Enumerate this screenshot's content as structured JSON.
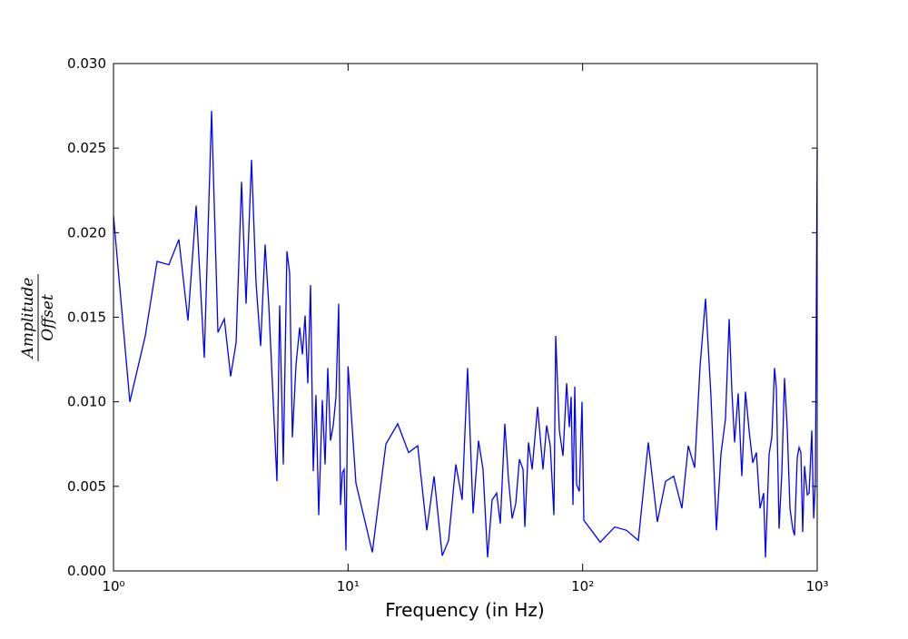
{
  "chart_data": {
    "type": "line",
    "xlabel": "Frequency (in Hz)",
    "ylabel_numerator": "Amplitude",
    "ylabel_denominator": "Offset",
    "xscale": "log",
    "xlim": [
      1,
      1000
    ],
    "xticks": [
      {
        "value": 1,
        "label": "10⁰"
      },
      {
        "value": 10,
        "label": "10¹"
      },
      {
        "value": 100,
        "label": "10²"
      },
      {
        "value": 1000,
        "label": "10³"
      }
    ],
    "ylim": [
      0,
      0.03
    ],
    "yticks": [
      {
        "value": 0,
        "label": "0.000"
      },
      0.005,
      {
        "value": 0.01,
        "label": "0.010"
      },
      0.015,
      {
        "value": 0.02,
        "label": "0.020"
      },
      0.025,
      {
        "value": 0.03,
        "label": "0.030"
      }
    ],
    "grid": false,
    "series": [
      {
        "color": "#0000ff",
        "x": [
          1,
          1.174,
          1.366,
          1.534,
          1.722,
          1.9,
          2.077,
          2.251,
          2.438,
          2.619,
          2.788,
          2.968,
          3.158,
          3.332,
          3.515,
          3.674,
          3.876,
          4.053,
          4.238,
          4.431,
          4.592,
          4.975,
          5.11,
          5.296,
          5.488,
          5.636,
          5.789,
          6.0,
          6.218,
          6.387,
          6.559,
          6.736,
          6.918,
          7.105,
          7.297,
          7.497,
          7.769,
          7.98,
          8.196,
          8.419,
          8.647,
          8.88,
          9.12,
          9.286,
          9.452,
          9.621,
          9.795,
          10.0,
          10.8,
          12.69,
          14.5,
          16.28,
          18.12,
          19.81,
          21.66,
          23.26,
          25.2,
          26.82,
          28.8,
          30.65,
          32.33,
          34.12,
          35.99,
          37.62,
          39.34,
          41.13,
          43.0,
          44.57,
          46.6,
          48.3,
          50.06,
          51.88,
          53.77,
          55.72,
          56.72,
          58.78,
          60.92,
          64.27,
          67.77,
          70.24,
          72.78,
          75.43,
          76.79,
          79.58,
          82.47,
          85.46,
          87.77,
          89.35,
          90.96,
          92.6,
          94.25,
          96.78,
          99.4,
          101.2,
          118.8,
          137.1,
          153.9,
          172.8,
          190.5,
          208.3,
          225.7,
          244.5,
          265.0,
          282.1,
          300.3,
          316.7,
          334.2,
          352.5,
          371.9,
          388.8,
          406.5,
          421.3,
          432.7,
          444.4,
          460.5,
          477.2,
          494.6,
          512.5,
          531.1,
          550.5,
          570.4,
          591.1,
          601.8,
          623.6,
          640.5,
          657.9,
          669.7,
          687.9,
          706.5,
          725.6,
          745.3,
          765.5,
          786.2,
          800.4,
          822.1,
          837.0,
          852.1,
          867.5,
          883.2,
          907.1,
          923.5,
          948.5,
          966.2,
          982.5,
          1000
        ],
        "values": [
          0.021,
          0.01,
          0.0139,
          0.0183,
          0.0181,
          0.0196,
          0.0148,
          0.0216,
          0.0126,
          0.0272,
          0.0141,
          0.0149,
          0.0115,
          0.0135,
          0.023,
          0.0158,
          0.0243,
          0.017,
          0.0133,
          0.0193,
          0.0157,
          0.0053,
          0.0157,
          0.0063,
          0.0189,
          0.0176,
          0.0079,
          0.0122,
          0.0144,
          0.0128,
          0.0151,
          0.0111,
          0.0169,
          0.0059,
          0.0104,
          0.0033,
          0.0101,
          0.0063,
          0.012,
          0.0077,
          0.0086,
          0.0103,
          0.0158,
          0.0039,
          0.0058,
          0.006,
          0.0012,
          0.0121,
          0.0052,
          0.0011,
          0.0075,
          0.0087,
          0.007,
          0.0074,
          0.0024,
          0.0056,
          0.0009,
          0.0018,
          0.0063,
          0.0042,
          0.012,
          0.0034,
          0.0077,
          0.006,
          0.0008,
          0.0042,
          0.0046,
          0.0028,
          0.0087,
          0.0054,
          0.0031,
          0.004,
          0.0066,
          0.006,
          0.0026,
          0.0076,
          0.006,
          0.0097,
          0.006,
          0.0086,
          0.0074,
          0.0033,
          0.0139,
          0.0083,
          0.0068,
          0.0111,
          0.0085,
          0.0103,
          0.0039,
          0.0109,
          0.0051,
          0.0047,
          0.01,
          0.003,
          0.0017,
          0.0026,
          0.0024,
          0.0018,
          0.0076,
          0.0029,
          0.0053,
          0.0056,
          0.0037,
          0.0074,
          0.0061,
          0.0121,
          0.0161,
          0.0103,
          0.0024,
          0.0069,
          0.009,
          0.0149,
          0.0107,
          0.0076,
          0.0105,
          0.0056,
          0.0106,
          0.0083,
          0.0064,
          0.007,
          0.0037,
          0.0046,
          0.0008,
          0.0069,
          0.0079,
          0.012,
          0.0108,
          0.0025,
          0.0058,
          0.0114,
          0.0084,
          0.0037,
          0.0025,
          0.0021,
          0.0067,
          0.0073,
          0.007,
          0.0023,
          0.0062,
          0.0045,
          0.0046,
          0.0083,
          0.0031,
          0.0053,
          0.0249
        ]
      }
    ]
  }
}
